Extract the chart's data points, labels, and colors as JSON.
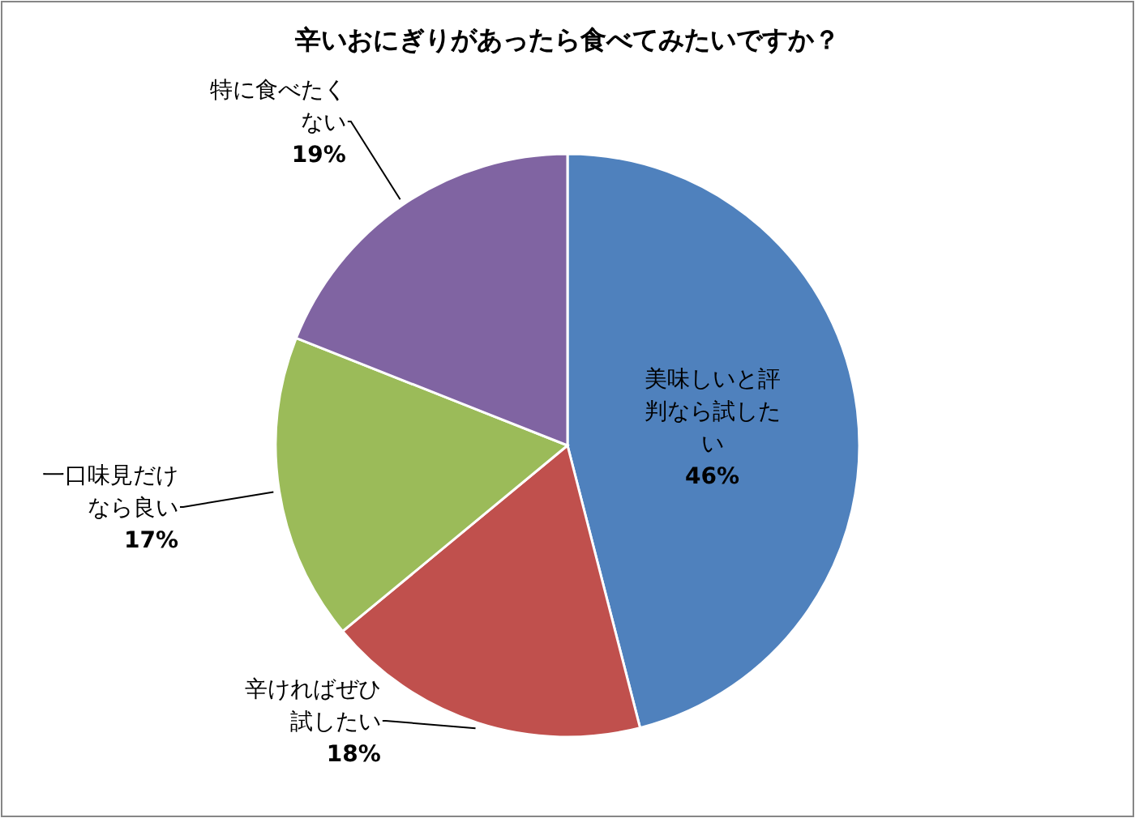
{
  "chart_data": {
    "type": "pie",
    "title": "辛いおにぎりがあったら食べてみたいですか？",
    "categories": [
      "美味しいと評判なら試したい",
      "辛ければぜひ試したい",
      "一口味見だけなら良い",
      "特に食べたくない"
    ],
    "values": [
      46,
      18,
      17,
      19
    ],
    "colors": [
      "#4f81bd",
      "#c0504d",
      "#9bbb59",
      "#8064a2"
    ],
    "value_labels": [
      "46%",
      "18%",
      "17%",
      "19%"
    ]
  }
}
